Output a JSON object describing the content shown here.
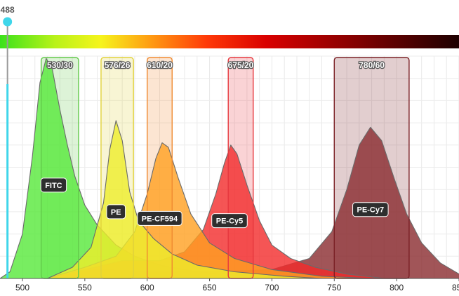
{
  "chart_data": {
    "type": "area",
    "title": "",
    "xlabel": "",
    "ylabel": "",
    "xlim": [
      482,
      850
    ],
    "ylim": [
      0,
      100
    ],
    "x_ticks": [
      "500",
      "550",
      "600",
      "650",
      "700",
      "750",
      "800",
      "850"
    ],
    "grid": true,
    "laser": {
      "label": "488",
      "wavelength": 488,
      "color": "#3fd6ea"
    },
    "spectrum_bar": {
      "from_nm": 482,
      "to_nm": 850
    },
    "filters": [
      {
        "label": "530/30",
        "center": 530,
        "width": 30,
        "color": "#62c94a"
      },
      {
        "label": "576/26",
        "center": 576,
        "width": 26,
        "color": "#e1d23a"
      },
      {
        "label": "610/20",
        "center": 610,
        "width": 20,
        "color": "#f08a30"
      },
      {
        "label": "675/20",
        "center": 675,
        "width": 20,
        "color": "#e6383e"
      },
      {
        "label": "780/60",
        "center": 780,
        "width": 60,
        "color": "#7a2025"
      }
    ],
    "series": [
      {
        "name": "FITC",
        "color": "#56e83a",
        "peak_x": 519,
        "peak_y": 99,
        "label_x": 525,
        "label_y": 42,
        "points": [
          [
            482,
            0
          ],
          [
            490,
            3
          ],
          [
            500,
            20
          ],
          [
            508,
            55
          ],
          [
            514,
            88
          ],
          [
            519,
            99
          ],
          [
            524,
            94
          ],
          [
            530,
            76
          ],
          [
            536,
            60
          ],
          [
            542,
            46
          ],
          [
            550,
            33
          ],
          [
            560,
            24
          ],
          [
            575,
            15
          ],
          [
            590,
            10
          ],
          [
            610,
            6
          ],
          [
            640,
            3
          ],
          [
            680,
            1
          ],
          [
            720,
            0
          ]
        ]
      },
      {
        "name": "PE-Cy7",
        "color": "#8a2a2e",
        "peak_x": 779,
        "peak_y": 68,
        "label_x": 779,
        "label_y": 31,
        "points": [
          [
            520,
            0
          ],
          [
            560,
            4
          ],
          [
            600,
            3
          ],
          [
            650,
            3
          ],
          [
            700,
            4
          ],
          [
            730,
            9
          ],
          [
            748,
            21
          ],
          [
            760,
            40
          ],
          [
            770,
            60
          ],
          [
            779,
            68
          ],
          [
            788,
            62
          ],
          [
            798,
            45
          ],
          [
            808,
            29
          ],
          [
            820,
            16
          ],
          [
            835,
            7
          ],
          [
            850,
            2
          ]
        ]
      },
      {
        "name": "PE-Cy5",
        "color": "#f22a2a",
        "peak_x": 667,
        "peak_y": 60,
        "label_x": 666,
        "label_y": 26,
        "points": [
          [
            520,
            0
          ],
          [
            550,
            4
          ],
          [
            580,
            8
          ],
          [
            610,
            8
          ],
          [
            630,
            12
          ],
          [
            645,
            22
          ],
          [
            655,
            38
          ],
          [
            662,
            52
          ],
          [
            667,
            60
          ],
          [
            672,
            56
          ],
          [
            680,
            42
          ],
          [
            690,
            26
          ],
          [
            700,
            15
          ],
          [
            715,
            9
          ],
          [
            735,
            5
          ],
          [
            760,
            2
          ],
          [
            790,
            0
          ]
        ]
      },
      {
        "name": "PE-CF594",
        "color": "#ffa020",
        "peak_x": 612,
        "peak_y": 61,
        "label_x": 610,
        "label_y": 27,
        "points": [
          [
            520,
            0
          ],
          [
            550,
            5
          ],
          [
            575,
            10
          ],
          [
            590,
            21
          ],
          [
            600,
            38
          ],
          [
            607,
            54
          ],
          [
            612,
            61
          ],
          [
            617,
            59
          ],
          [
            625,
            45
          ],
          [
            635,
            29
          ],
          [
            650,
            16
          ],
          [
            670,
            9
          ],
          [
            700,
            4
          ],
          [
            740,
            1
          ],
          [
            780,
            0
          ]
        ]
      },
      {
        "name": "PE",
        "color": "#eeee2a",
        "peak_x": 575,
        "peak_y": 71,
        "label_x": 575,
        "label_y": 30,
        "points": [
          [
            520,
            0
          ],
          [
            540,
            5
          ],
          [
            555,
            14
          ],
          [
            565,
            34
          ],
          [
            570,
            58
          ],
          [
            575,
            71
          ],
          [
            580,
            62
          ],
          [
            586,
            39
          ],
          [
            593,
            26
          ],
          [
            605,
            18
          ],
          [
            620,
            11
          ],
          [
            640,
            6
          ],
          [
            670,
            3
          ],
          [
            710,
            1
          ],
          [
            740,
            0
          ]
        ]
      }
    ]
  }
}
